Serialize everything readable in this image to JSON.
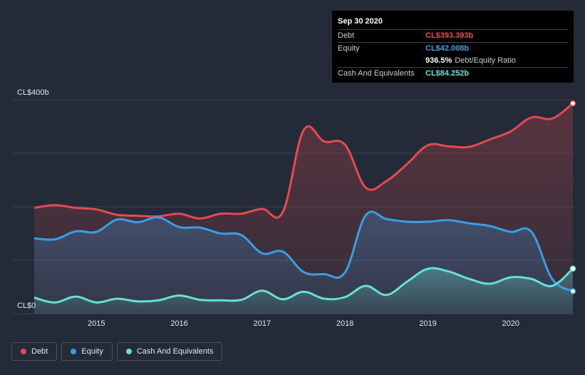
{
  "colors": {
    "debt": "#e64a4f",
    "equity": "#3a9ee6",
    "cash": "#64e1d2",
    "background": "#232b38"
  },
  "tooltip": {
    "date": "Sep 30 2020",
    "debt_label": "Debt",
    "debt_value": "CL$393.393b",
    "equity_label": "Equity",
    "equity_value": "CL$42.008b",
    "ratio_value": "936.5%",
    "ratio_label": "Debt/Equity Ratio",
    "cash_label": "Cash And Equivalents",
    "cash_value": "CL$84.252b"
  },
  "legend": {
    "debt": "Debt",
    "equity": "Equity",
    "cash": "Cash And Equivalents"
  },
  "chart_data": {
    "type": "area",
    "title": "",
    "xlabel": "",
    "ylabel": "",
    "ylim": [
      0,
      400
    ],
    "xlim": [
      2014.25,
      2020.75
    ],
    "y_tick_labels": [
      "CL$400b",
      "CL$0"
    ],
    "x_ticks": [
      2015,
      2016,
      2017,
      2018,
      2019,
      2020
    ],
    "x_tick_labels": [
      "2015",
      "2016",
      "2017",
      "2018",
      "2019",
      "2020"
    ],
    "grid": true,
    "series": [
      {
        "name": "Debt",
        "key": "debt",
        "points": [
          [
            2014.25,
            198
          ],
          [
            2014.5,
            203
          ],
          [
            2014.75,
            198
          ],
          [
            2015.0,
            195
          ],
          [
            2015.25,
            185
          ],
          [
            2015.5,
            183
          ],
          [
            2015.75,
            182
          ],
          [
            2016.0,
            187
          ],
          [
            2016.25,
            178
          ],
          [
            2016.5,
            187
          ],
          [
            2016.75,
            187
          ],
          [
            2017.0,
            196
          ],
          [
            2017.25,
            190
          ],
          [
            2017.5,
            343
          ],
          [
            2017.75,
            322
          ],
          [
            2018.0,
            316
          ],
          [
            2018.25,
            236
          ],
          [
            2018.5,
            248
          ],
          [
            2018.75,
            280
          ],
          [
            2019.0,
            315
          ],
          [
            2019.25,
            313
          ],
          [
            2019.5,
            312
          ],
          [
            2019.75,
            326
          ],
          [
            2020.0,
            341
          ],
          [
            2020.25,
            367
          ],
          [
            2020.5,
            365
          ],
          [
            2020.75,
            393.393
          ]
        ]
      },
      {
        "name": "Equity",
        "key": "equity",
        "points": [
          [
            2014.25,
            141
          ],
          [
            2014.5,
            139
          ],
          [
            2014.75,
            154
          ],
          [
            2015.0,
            153
          ],
          [
            2015.25,
            176
          ],
          [
            2015.5,
            171
          ],
          [
            2015.75,
            180
          ],
          [
            2016.0,
            162
          ],
          [
            2016.25,
            161
          ],
          [
            2016.5,
            150
          ],
          [
            2016.75,
            147
          ],
          [
            2017.0,
            113
          ],
          [
            2017.25,
            116
          ],
          [
            2017.5,
            78
          ],
          [
            2017.75,
            74
          ],
          [
            2018.0,
            77
          ],
          [
            2018.25,
            184
          ],
          [
            2018.5,
            177
          ],
          [
            2018.75,
            172
          ],
          [
            2019.0,
            172
          ],
          [
            2019.25,
            175
          ],
          [
            2019.5,
            169
          ],
          [
            2019.75,
            164
          ],
          [
            2020.0,
            153
          ],
          [
            2020.25,
            153
          ],
          [
            2020.5,
            65
          ],
          [
            2020.75,
            42.008
          ]
        ]
      },
      {
        "name": "Cash And Equivalents",
        "key": "cash",
        "points": [
          [
            2014.25,
            30
          ],
          [
            2014.5,
            21
          ],
          [
            2014.75,
            32
          ],
          [
            2015.0,
            21
          ],
          [
            2015.25,
            28
          ],
          [
            2015.5,
            23
          ],
          [
            2015.75,
            25
          ],
          [
            2016.0,
            34
          ],
          [
            2016.25,
            26
          ],
          [
            2016.5,
            25
          ],
          [
            2016.75,
            26
          ],
          [
            2017.0,
            43
          ],
          [
            2017.25,
            27
          ],
          [
            2017.5,
            41
          ],
          [
            2017.75,
            28
          ],
          [
            2018.0,
            31
          ],
          [
            2018.25,
            52
          ],
          [
            2018.5,
            35
          ],
          [
            2018.75,
            60
          ],
          [
            2019.0,
            84
          ],
          [
            2019.25,
            79
          ],
          [
            2019.5,
            65
          ],
          [
            2019.75,
            56
          ],
          [
            2020.0,
            68
          ],
          [
            2020.25,
            65
          ],
          [
            2020.5,
            52
          ],
          [
            2020.75,
            84.252
          ]
        ]
      }
    ]
  }
}
